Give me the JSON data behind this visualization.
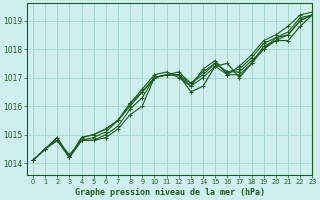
{
  "title": "Graphe pression niveau de la mer (hPa)",
  "bg_color": "#cdf0ee",
  "grid_color": "#a8d8cc",
  "line_color": "#1e5c1e",
  "xlim": [
    -0.5,
    23
  ],
  "ylim": [
    1013.6,
    1019.6
  ],
  "yticks": [
    1014,
    1015,
    1016,
    1017,
    1018,
    1019
  ],
  "xticks": [
    0,
    1,
    2,
    3,
    4,
    5,
    6,
    7,
    8,
    9,
    10,
    11,
    12,
    13,
    14,
    15,
    16,
    17,
    18,
    19,
    20,
    21,
    22,
    23
  ],
  "series": [
    [
      1014.1,
      1014.5,
      1014.8,
      1014.2,
      1014.8,
      1014.8,
      1014.9,
      1015.2,
      1015.7,
      1016.0,
      1017.0,
      1017.1,
      1017.1,
      1016.7,
      1017.0,
      1017.4,
      1017.1,
      1017.1,
      1017.5,
      1018.0,
      1018.4,
      1018.5,
      1019.0,
      1019.2
    ],
    [
      1014.1,
      1014.5,
      1014.8,
      1014.2,
      1014.8,
      1014.8,
      1015.0,
      1015.3,
      1015.9,
      1016.3,
      1017.0,
      1017.1,
      1017.1,
      1016.8,
      1017.1,
      1017.5,
      1017.2,
      1017.2,
      1017.6,
      1018.0,
      1018.3,
      1018.5,
      1019.0,
      1019.2
    ],
    [
      1014.1,
      1014.5,
      1014.8,
      1014.3,
      1014.8,
      1014.9,
      1015.1,
      1015.5,
      1016.0,
      1016.5,
      1017.0,
      1017.1,
      1017.2,
      1016.8,
      1017.2,
      1017.5,
      1017.2,
      1017.3,
      1017.7,
      1018.2,
      1018.4,
      1018.6,
      1019.1,
      1019.2
    ],
    [
      1014.1,
      1014.5,
      1014.9,
      1014.2,
      1014.9,
      1015.0,
      1015.2,
      1015.5,
      1016.1,
      1016.6,
      1017.1,
      1017.2,
      1017.0,
      1016.7,
      1017.3,
      1017.6,
      1017.1,
      1017.4,
      1017.8,
      1018.3,
      1018.5,
      1018.8,
      1019.2,
      1019.3
    ]
  ],
  "series_up": [
    1014.1,
    1014.5,
    1014.9,
    1014.2,
    1014.9,
    1015.0,
    1015.2,
    1015.5,
    1016.1,
    1016.5,
    1017.0,
    1017.1,
    1017.1,
    1016.5,
    1016.7,
    1017.4,
    1017.5,
    1017.0,
    1017.5,
    1018.1,
    1018.3,
    1018.3,
    1018.8,
    1019.2
  ]
}
